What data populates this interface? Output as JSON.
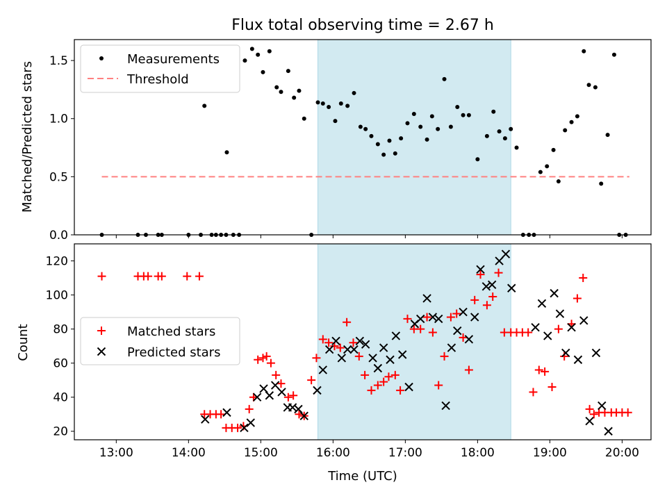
{
  "chart_data": {
    "title": "Flux total observing time = 2.67 h",
    "xlabel": "Time (UTC)",
    "x_tick_labels": [
      "13:00",
      "14:00",
      "15:00",
      "16:00",
      "17:00",
      "18:00",
      "19:00",
      "20:00"
    ],
    "x_ticks_hours": [
      13,
      14,
      15,
      16,
      17,
      18,
      19,
      20
    ],
    "xlim_hours": [
      12.42,
      20.4
    ],
    "shaded_interval_hours": [
      15.79,
      18.46
    ],
    "shade_color": "#add8e6",
    "panels": [
      {
        "type": "scatter",
        "ylabel": "Matched/Predicted stars",
        "ylim": [
          0,
          1.68
        ],
        "y_ticks": [
          0.0,
          0.5,
          1.0,
          1.5
        ],
        "y_tick_labels": [
          "0.0",
          "0.5",
          "1.0",
          "1.5"
        ],
        "legend": {
          "position": "upper left",
          "entries": [
            {
              "label": "Measurements",
              "marker": "dot",
              "color": "#000000"
            },
            {
              "label": "Threshold",
              "marker": "dashed-line",
              "color": "#ff8080"
            }
          ]
        },
        "threshold": {
          "value": 0.5,
          "x_range_hours": [
            12.8,
            20.1
          ],
          "color": "#ff8080"
        },
        "measurements": {
          "color": "#000000",
          "x": [
            12.8,
            13.3,
            13.41,
            13.58,
            13.63,
            14.0,
            14.17,
            14.22,
            14.32,
            14.38,
            14.45,
            14.52,
            14.53,
            14.62,
            14.7,
            14.78,
            14.88,
            14.96,
            15.03,
            15.12,
            15.22,
            15.28,
            15.38,
            15.46,
            15.53,
            15.6,
            15.7,
            15.79,
            15.86,
            15.94,
            16.03,
            16.11,
            16.2,
            16.29,
            16.38,
            16.45,
            16.53,
            16.62,
            16.7,
            16.78,
            16.86,
            16.94,
            17.03,
            17.12,
            17.21,
            17.3,
            17.37,
            17.45,
            17.54,
            17.63,
            17.72,
            17.8,
            17.88,
            18.0,
            18.13,
            18.22,
            18.3,
            18.38,
            18.46,
            18.54,
            18.63,
            18.71,
            18.78,
            18.87,
            18.96,
            19.05,
            19.12,
            19.21,
            19.3,
            19.38,
            19.47,
            19.54,
            19.63,
            19.71,
            19.8,
            19.89,
            19.96,
            20.05
          ],
          "y": [
            0.0,
            0.0,
            0.0,
            0.0,
            0.0,
            0.0,
            0.0,
            1.11,
            0.0,
            0.0,
            0.0,
            0.0,
            0.71,
            0.0,
            0.0,
            1.5,
            1.6,
            1.55,
            1.4,
            1.58,
            1.27,
            1.23,
            1.41,
            1.18,
            1.24,
            1.0,
            0.0,
            1.14,
            1.13,
            1.1,
            0.98,
            1.13,
            1.11,
            1.22,
            0.93,
            0.91,
            0.85,
            0.78,
            0.69,
            0.81,
            0.7,
            0.83,
            0.96,
            1.04,
            0.93,
            0.82,
            1.02,
            0.91,
            1.34,
            0.93,
            1.1,
            1.03,
            1.03,
            0.65,
            0.85,
            1.06,
            0.89,
            0.83,
            0.91,
            0.75,
            0.0,
            0.0,
            0.0,
            0.54,
            0.59,
            0.73,
            0.46,
            0.9,
            0.97,
            1.02,
            1.58,
            1.29,
            1.27,
            0.44,
            0.86,
            1.55,
            0.0,
            0.0
          ]
        }
      },
      {
        "type": "scatter",
        "ylabel": "Count",
        "ylim": [
          15,
          130
        ],
        "y_ticks": [
          20,
          40,
          60,
          80,
          100,
          120
        ],
        "y_tick_labels": [
          "20",
          "40",
          "60",
          "80",
          "100",
          "120"
        ],
        "legend": {
          "position": "center left",
          "entries": [
            {
              "label": "Matched stars",
              "marker": "plus",
              "color": "#ff0000"
            },
            {
              "label": "Predicted stars",
              "marker": "x",
              "color": "#000000"
            }
          ]
        },
        "series": [
          {
            "name": "Matched stars",
            "marker": "plus",
            "color": "#ff0000",
            "x": [
              12.8,
              13.3,
              13.38,
              13.44,
              13.58,
              13.63,
              13.98,
              14.15,
              14.22,
              14.3,
              14.38,
              14.45,
              14.52,
              14.6,
              14.68,
              14.76,
              14.84,
              14.9,
              14.96,
              15.03,
              15.08,
              15.14,
              15.21,
              15.28,
              15.38,
              15.45,
              15.53,
              15.6,
              15.7,
              15.77,
              15.86,
              15.94,
              16.02,
              16.1,
              16.19,
              16.28,
              16.36,
              16.44,
              16.53,
              16.62,
              16.7,
              16.77,
              16.86,
              16.93,
              17.03,
              17.12,
              17.21,
              17.3,
              17.38,
              17.46,
              17.54,
              17.63,
              17.71,
              17.8,
              17.88,
              17.96,
              18.04,
              18.13,
              18.21,
              18.29,
              18.37,
              18.46,
              18.54,
              18.62,
              18.7,
              18.77,
              18.85,
              18.93,
              19.03,
              19.12,
              19.2,
              19.3,
              19.38,
              19.46,
              19.55,
              19.61,
              19.68,
              19.76,
              19.85,
              19.92,
              20.0,
              20.08
            ],
            "y": [
              111,
              111,
              111,
              111,
              111,
              111,
              111,
              111,
              30,
              30,
              30,
              30,
              22,
              22,
              22,
              23,
              33,
              40,
              62,
              63,
              64,
              60,
              53,
              48,
              40,
              41,
              30,
              29,
              50,
              63,
              74,
              72,
              70,
              69,
              84,
              72,
              64,
              53,
              44,
              47,
              49,
              52,
              53,
              44,
              86,
              80,
              80,
              87,
              78,
              47,
              64,
              87,
              89,
              75,
              56,
              97,
              112,
              94,
              99,
              113,
              78,
              78,
              78,
              78,
              78,
              43,
              56,
              55,
              46,
              80,
              64,
              83,
              98,
              110,
              33,
              30,
              31,
              31,
              31,
              31,
              31,
              31
            ]
          },
          {
            "name": "Predicted stars",
            "marker": "x",
            "color": "#000000",
            "x": [
              14.23,
              14.53,
              14.77,
              14.86,
              14.95,
              15.04,
              15.12,
              15.2,
              15.29,
              15.37,
              15.44,
              15.52,
              15.6,
              15.78,
              15.86,
              15.95,
              16.04,
              16.12,
              16.2,
              16.29,
              16.37,
              16.45,
              16.55,
              16.62,
              16.7,
              16.79,
              16.87,
              16.96,
              17.05,
              17.13,
              17.21,
              17.3,
              17.38,
              17.46,
              17.56,
              17.64,
              17.72,
              17.8,
              17.88,
              17.96,
              18.04,
              18.12,
              18.2,
              18.3,
              18.39,
              18.47,
              18.8,
              18.89,
              18.97,
              19.06,
              19.14,
              19.22,
              19.3,
              19.39,
              19.47,
              19.55,
              19.64,
              19.72,
              19.81
            ],
            "y": [
              27,
              31,
              22,
              25,
              40,
              45,
              41,
              47,
              43,
              34,
              34,
              33,
              29,
              44,
              56,
              68,
              73,
              63,
              68,
              68,
              73,
              71,
              63,
              57,
              69,
              62,
              76,
              65,
              46,
              83,
              86,
              98,
              87,
              86,
              35,
              69,
              79,
              90,
              74,
              87,
              115,
              105,
              106,
              120,
              124,
              104,
              81,
              95,
              76,
              101,
              89,
              66,
              81,
              62,
              85,
              26,
              66,
              35,
              20
            ]
          }
        ]
      }
    ]
  }
}
